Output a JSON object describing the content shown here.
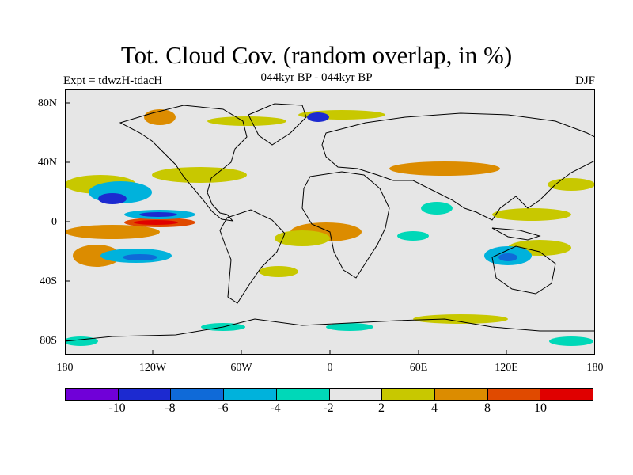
{
  "header": {
    "title": "Tot. Cloud Cov. (random overlap, in %)",
    "subtitle": "044kyr BP - 044kyr BP",
    "experiment": "Expt = tdwzH-tdacH",
    "season": "DJF"
  },
  "axes": {
    "lat_labels": [
      "80N",
      "40N",
      "0",
      "40S",
      "80S"
    ],
    "lon_labels": [
      "180",
      "120W",
      "60W",
      "0",
      "60E",
      "120E",
      "180"
    ]
  },
  "colors": {
    "background": "#e6e6e6",
    "coast": "#000000"
  },
  "colorbar": {
    "colors": [
      "#7000d8",
      "#1c2ad0",
      "#0f6ad8",
      "#00b2dc",
      "#00d8b8",
      "#e6e6e6",
      "#c8c800",
      "#dc8c00",
      "#e04a00",
      "#e00000"
    ],
    "labels": [
      "-10",
      "-8",
      "-6",
      "-4",
      "-2",
      "2",
      "4",
      "8",
      "10"
    ]
  }
}
